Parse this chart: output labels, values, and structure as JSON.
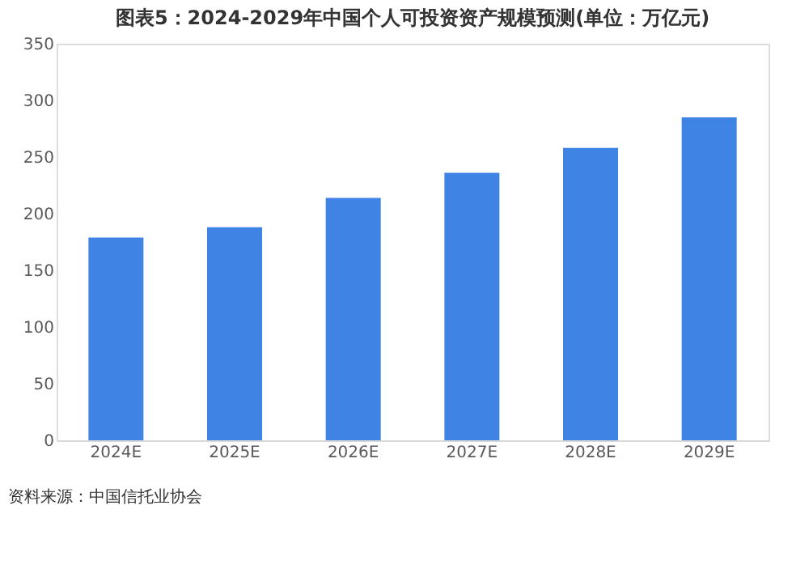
{
  "chart_data": {
    "type": "bar",
    "title": "图表5：2024-2029年中国个人可投资资产规模预测(单位：万亿元)",
    "categories": [
      "2024E",
      "2025E",
      "2026E",
      "2027E",
      "2028E",
      "2029E"
    ],
    "series": [
      {
        "color": "#3f84e5",
        "values": [
          179,
          188,
          214,
          236,
          258,
          285
        ]
      }
    ],
    "ylim": [
      0,
      350
    ],
    "yticks": [
      0,
      50,
      100,
      150,
      200,
      250,
      300,
      350
    ],
    "grid": false,
    "annotations": [
      "资料来源：中国信托业协会"
    ]
  }
}
